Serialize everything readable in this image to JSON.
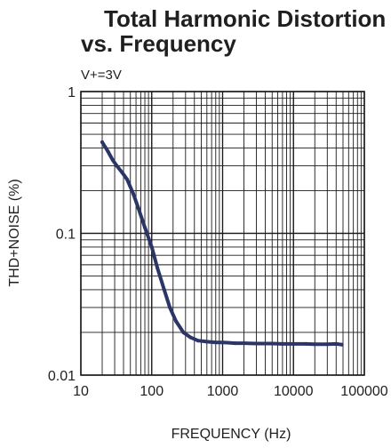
{
  "chart_data": {
    "type": "line",
    "title_lines": [
      "Total Harmonic Distortion",
      "vs. Frequency"
    ],
    "condition": "V+=3V",
    "xlabel": "FREQUENCY (Hz)",
    "ylabel": "THD+NOISE (%)",
    "x_scale": "log",
    "y_scale": "log",
    "xlim": [
      10,
      100000
    ],
    "ylim": [
      0.01,
      1
    ],
    "x_ticks": [
      "10",
      "100",
      "1000",
      "10000",
      "100000"
    ],
    "y_ticks": [
      "0.01",
      "0.1",
      "1"
    ],
    "grid": true,
    "series": [
      {
        "color": "#2b3566",
        "x": [
          20,
          24,
          28,
          32,
          38,
          45,
          55,
          65,
          80,
          100,
          120,
          150,
          180,
          220,
          280,
          350,
          450,
          600,
          800,
          1000,
          1500,
          2000,
          3000,
          5000,
          7000,
          10000,
          15000,
          20000,
          30000,
          40000,
          48000
        ],
        "y": [
          0.44,
          0.38,
          0.33,
          0.3,
          0.27,
          0.24,
          0.19,
          0.15,
          0.11,
          0.08,
          0.057,
          0.04,
          0.03,
          0.024,
          0.02,
          0.0185,
          0.0175,
          0.0172,
          0.017,
          0.017,
          0.0168,
          0.0168,
          0.0167,
          0.0167,
          0.0166,
          0.0166,
          0.0166,
          0.0165,
          0.0165,
          0.0166,
          0.0164
        ]
      }
    ]
  }
}
